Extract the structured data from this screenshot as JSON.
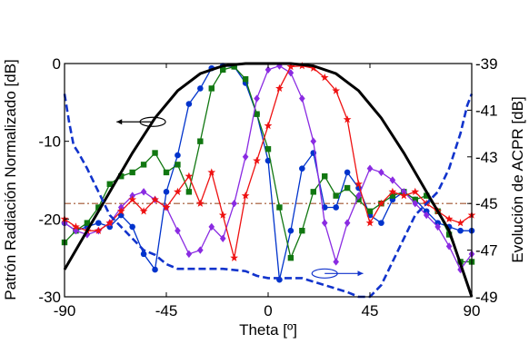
{
  "chart_data": {
    "type": "line",
    "xlabel": "Theta [º]",
    "ylabel_left": "Patrón Radiación Normalizado [dB]",
    "ylabel_right": "Evolución de ACPR [dB]",
    "xlim": [
      -90,
      90
    ],
    "ylim_left": [
      -30,
      0
    ],
    "ylim_right": [
      -49,
      -39
    ],
    "x_ticks": [
      "-90",
      "-45",
      "0",
      "45",
      "90"
    ],
    "y_left_ticks": [
      "-30",
      "-20",
      "-10",
      "0"
    ],
    "y_right_ticks": [
      "-49",
      "-47",
      "-45",
      "-43",
      "-41",
      "-39"
    ],
    "grid": false,
    "series": [
      {
        "style": "solid",
        "color": "#000000",
        "marker": "none",
        "axis": "left",
        "x": [
          -90,
          -80,
          -70,
          -60,
          -50,
          -40,
          -30,
          -20,
          -10,
          0,
          10,
          20,
          30,
          40,
          50,
          60,
          70,
          80,
          90
        ],
        "y": [
          -26.5,
          -21.5,
          -16.5,
          -11.5,
          -7.0,
          -3.5,
          -1.3,
          -0.3,
          0,
          0,
          0,
          -0.3,
          -1.3,
          -3.5,
          -7.0,
          -11.5,
          -16.5,
          -21.5,
          -30.0
        ]
      },
      {
        "style": "solid",
        "color": "#0033cc",
        "marker": "circle",
        "axis": "left",
        "x": [
          -90,
          -85,
          -80,
          -75,
          -70,
          -65,
          -60,
          -55,
          -50,
          -45,
          -40,
          -35,
          -30,
          -25,
          -20,
          -15,
          -10,
          -5,
          0,
          5,
          10,
          15,
          20,
          25,
          30,
          35,
          40,
          45,
          50,
          55,
          60,
          65,
          70,
          75,
          80,
          85,
          90
        ],
        "y": [
          -20.5,
          -21.5,
          -21,
          -20.5,
          -21,
          -19.5,
          -21,
          -24.5,
          -26.5,
          -16.5,
          -11.8,
          -5.2,
          -3.2,
          -0.6,
          -0.3,
          -0.4,
          -2.5,
          -6.5,
          -12.5,
          -27.8,
          -21.5,
          -13.5,
          -11.5,
          -18.5,
          -18.5,
          -14.0,
          -16.0,
          -19.5,
          -20.5,
          -17.5,
          -16.5,
          -17.5,
          -19.0,
          -20.5,
          -21.0,
          -21.5,
          -21.5
        ]
      },
      {
        "style": "solid",
        "color": "#117711",
        "marker": "square",
        "axis": "left",
        "x": [
          -90,
          -85,
          -80,
          -75,
          -70,
          -65,
          -60,
          -55,
          -50,
          -45,
          -40,
          -35,
          -30,
          -25,
          -20,
          -15,
          -10,
          -5,
          0,
          5,
          10,
          15,
          20,
          25,
          30,
          35,
          40,
          45,
          50,
          55,
          60,
          65,
          70,
          75,
          80,
          85,
          90
        ],
        "y": [
          -23,
          -21.5,
          -20.5,
          -18.5,
          -15.5,
          -14.5,
          -14.0,
          -13.0,
          -11.5,
          -14.0,
          -13.0,
          -16.5,
          -10.0,
          -3.2,
          -0.8,
          -0.4,
          -2.0,
          -6.5,
          -11.0,
          -18.5,
          -25.0,
          -21.5,
          -16.5,
          -14.5,
          -17.0,
          -16.0,
          -17.5,
          -19.0,
          -18.0,
          -17.0,
          -16.5,
          -17.5,
          -17.0,
          -19.0,
          -22.0,
          -25.5,
          -25.5
        ]
      },
      {
        "style": "solid",
        "color": "#8a2be2",
        "marker": "diamond",
        "axis": "left",
        "x": [
          -90,
          -85,
          -80,
          -75,
          -70,
          -65,
          -60,
          -55,
          -50,
          -45,
          -40,
          -35,
          -30,
          -25,
          -20,
          -15,
          -10,
          -5,
          0,
          5,
          10,
          15,
          20,
          25,
          30,
          35,
          40,
          45,
          50,
          55,
          60,
          65,
          70,
          75,
          80,
          85,
          90
        ],
        "y": [
          -20.5,
          -21.5,
          -22.0,
          -21.5,
          -20.5,
          -18.5,
          -17.0,
          -16.5,
          -17.5,
          -18.5,
          -21.5,
          -24.5,
          -24.0,
          -21.0,
          -22.5,
          -18.0,
          -12.0,
          -4.5,
          -0.8,
          -0.3,
          -1.2,
          -4.5,
          -10.0,
          -20.5,
          -25.5,
          -20.5,
          -17.0,
          -13.5,
          -14.0,
          -15.0,
          -16.5,
          -18.0,
          -19.5,
          -21.0,
          -23.5,
          -26.5,
          -24.5
        ]
      },
      {
        "style": "solid",
        "color": "#ee1111",
        "marker": "star",
        "axis": "left",
        "x": [
          -90,
          -85,
          -80,
          -75,
          -70,
          -65,
          -60,
          -55,
          -50,
          -45,
          -40,
          -35,
          -30,
          -25,
          -20,
          -15,
          -10,
          -5,
          0,
          5,
          10,
          15,
          20,
          25,
          30,
          35,
          40,
          45,
          50,
          55,
          60,
          65,
          70,
          75,
          80,
          85,
          90
        ],
        "y": [
          -20.0,
          -21.0,
          -21.5,
          -21.5,
          -20.5,
          -19.0,
          -17.5,
          -19.0,
          -17.5,
          -18.5,
          -16.5,
          -14.5,
          -18.0,
          -14.0,
          -19.5,
          -25.0,
          -17.0,
          -12.5,
          -8.0,
          -3.2,
          -0.4,
          -0.3,
          -0.6,
          -1.8,
          -3.5,
          -7.2,
          -15.5,
          -20.5,
          -18.0,
          -16.5,
          -17.0,
          -16.5,
          -18.0,
          -19.0,
          -20.0,
          -20.5,
          -19.5
        ]
      },
      {
        "style": "dashed",
        "color": "#1133cc",
        "marker": "none",
        "axis": "right",
        "x": [
          -90,
          -88,
          -86,
          -84,
          -80,
          -75,
          -70,
          -65,
          -60,
          -55,
          -50,
          -45,
          -40,
          -30,
          -20,
          -10,
          -5,
          0,
          5,
          15,
          25,
          35,
          40,
          45,
          50,
          55,
          60,
          65,
          70,
          75,
          80,
          85,
          88,
          90
        ],
        "y": [
          -40.3,
          -41.5,
          -42.5,
          -42.8,
          -43.5,
          -44.5,
          -45.5,
          -46.0,
          -46.5,
          -47.0,
          -47.2,
          -47.6,
          -47.8,
          -47.8,
          -47.8,
          -47.9,
          -48.1,
          -48.2,
          -48.2,
          -48.2,
          -48.5,
          -48.8,
          -49.0,
          -49.0,
          -48.5,
          -47.5,
          -46.5,
          -45.5,
          -45.0,
          -44.5,
          -43.5,
          -42.0,
          -40.8,
          -40.3
        ]
      },
      {
        "style": "dashdot",
        "color": "#a0522d",
        "marker": "none",
        "axis": "left",
        "x": [
          -90,
          90
        ],
        "y": [
          -18,
          -18
        ]
      }
    ]
  }
}
